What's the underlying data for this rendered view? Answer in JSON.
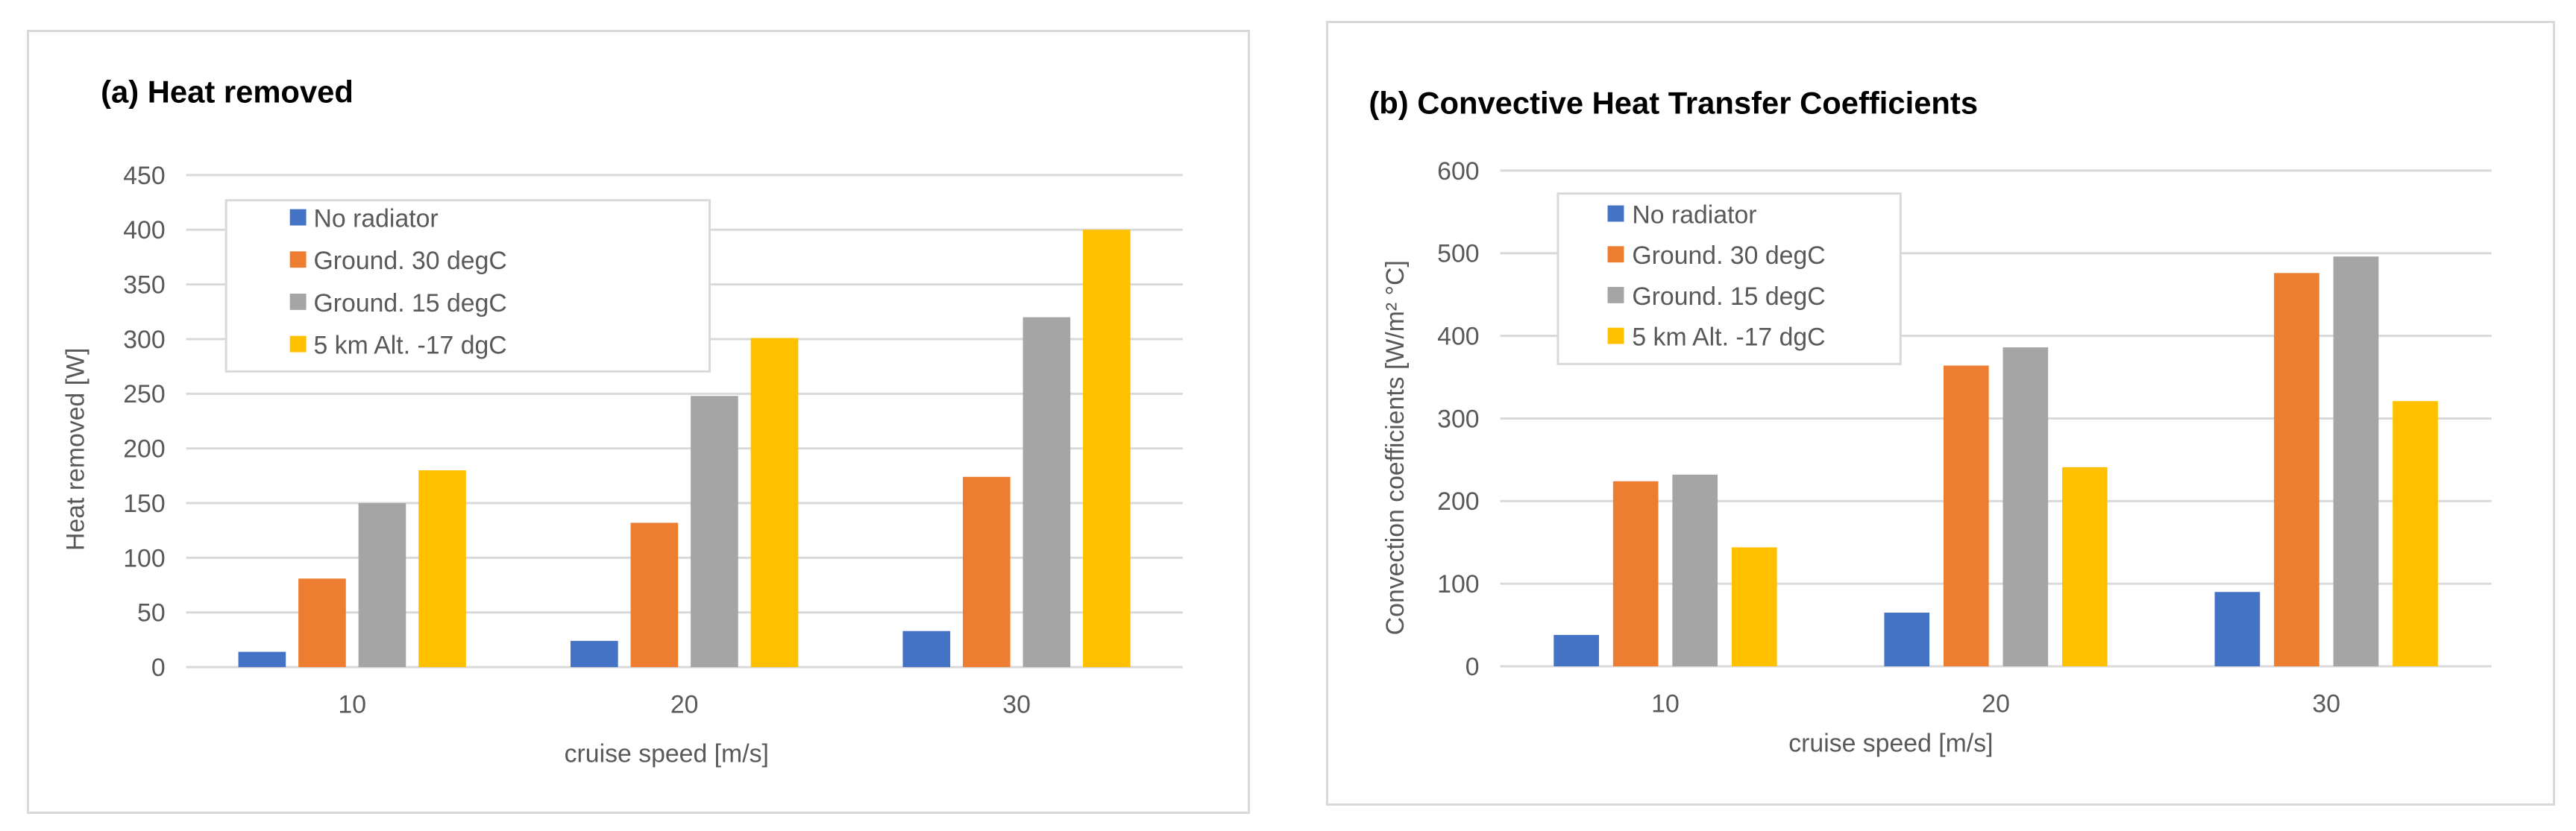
{
  "chart_data": [
    {
      "type": "bar",
      "title": "(a) Heat removed",
      "xlabel": "cruise speed [m/s]",
      "ylabel": "Heat removed [W]",
      "ylim": [
        0,
        450
      ],
      "ytick_step": 50,
      "yticks": [
        "0",
        "50",
        "100",
        "150",
        "200",
        "250",
        "300",
        "350",
        "400",
        "450"
      ],
      "categories": [
        "10",
        "20",
        "30"
      ],
      "grid": true,
      "legend_position": "top-left",
      "series": [
        {
          "name": "No radiator",
          "color": "#4472c4",
          "values": [
            14,
            24,
            33
          ]
        },
        {
          "name": "Ground. 30 degC",
          "color": "#ed7d31",
          "values": [
            81,
            132,
            174
          ]
        },
        {
          "name": "Ground. 15 degC",
          "color": "#a5a5a5",
          "values": [
            150,
            248,
            320
          ]
        },
        {
          "name": "5 km Alt. -17 dgC",
          "color": "#ffc000",
          "values": [
            180,
            301,
            400
          ]
        }
      ]
    },
    {
      "type": "bar",
      "title": "(b) Convective Heat Transfer Coefficients",
      "xlabel": "cruise speed [m/s]",
      "ylabel": "Convection coefficients [W/m² °C]",
      "ylim": [
        0,
        600
      ],
      "ytick_step": 100,
      "yticks": [
        "0",
        "100",
        "200",
        "300",
        "400",
        "500",
        "600"
      ],
      "categories": [
        "10",
        "20",
        "30"
      ],
      "grid": true,
      "legend_position": "top-left",
      "series": [
        {
          "name": "No radiator",
          "color": "#4472c4",
          "values": [
            38,
            65,
            90
          ]
        },
        {
          "name": "Ground. 30 degC",
          "color": "#ed7d31",
          "values": [
            224,
            364,
            476
          ]
        },
        {
          "name": "Ground. 15 degC",
          "color": "#a5a5a5",
          "values": [
            232,
            386,
            496
          ]
        },
        {
          "name": "5 km Alt. -17 dgC",
          "color": "#ffc000",
          "values": [
            144,
            241,
            321
          ]
        }
      ]
    }
  ]
}
